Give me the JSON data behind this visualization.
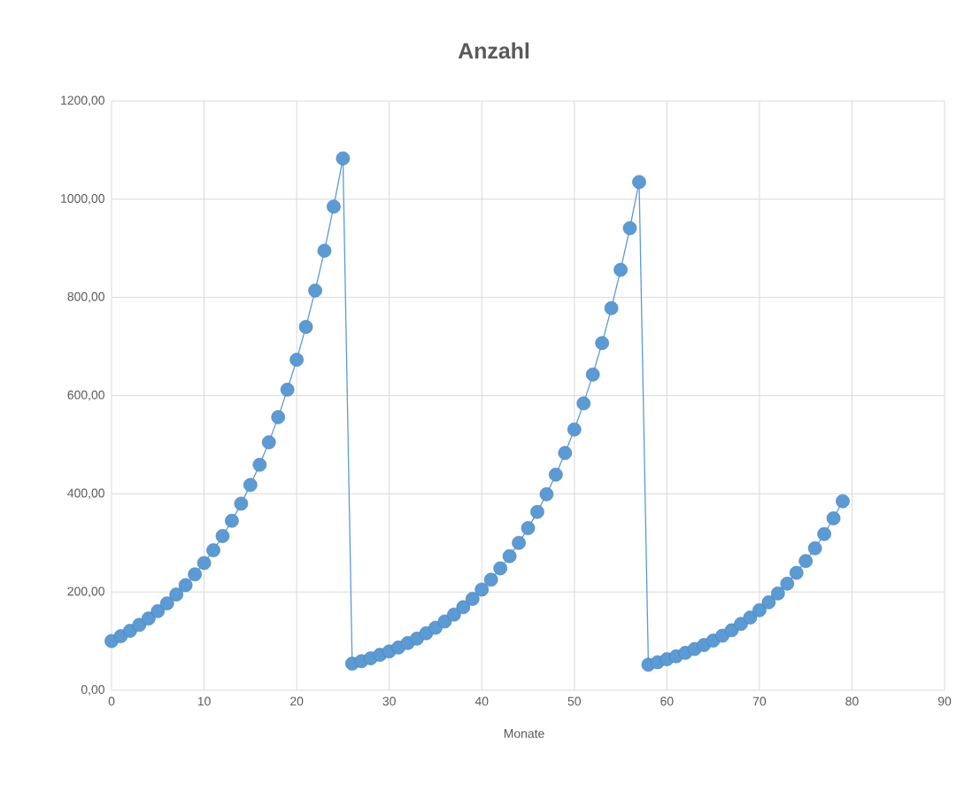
{
  "chart_data": {
    "type": "line",
    "title": "Anzahl",
    "xlabel": "Monate",
    "x": [
      0,
      1,
      2,
      3,
      4,
      5,
      6,
      7,
      8,
      9,
      10,
      11,
      12,
      13,
      14,
      15,
      16,
      17,
      18,
      19,
      20,
      21,
      22,
      23,
      24,
      25,
      26,
      27,
      28,
      29,
      30,
      31,
      32,
      33,
      34,
      35,
      36,
      37,
      38,
      39,
      40,
      41,
      42,
      43,
      44,
      45,
      46,
      47,
      48,
      49,
      50,
      51,
      52,
      53,
      54,
      55,
      56,
      57,
      58,
      59,
      60,
      61,
      62,
      63,
      64,
      65,
      66,
      67,
      68,
      69,
      70,
      71,
      72,
      73,
      74,
      75,
      76,
      77,
      78,
      79
    ],
    "series": [
      {
        "color": "#5b9bd5",
        "values": [
          100,
          110,
          121,
          133,
          146,
          161,
          177,
          195,
          214,
          236,
          259,
          285,
          314,
          345,
          380,
          418,
          459,
          505,
          556,
          612,
          673,
          740,
          814,
          895,
          985,
          1083,
          54,
          59,
          65,
          72,
          79,
          87,
          96,
          105,
          116,
          127,
          140,
          154,
          169,
          186,
          205,
          225,
          248,
          273,
          300,
          330,
          363,
          399,
          439,
          483,
          531,
          584,
          643,
          707,
          778,
          856,
          941,
          1035,
          52,
          57,
          63,
          69,
          76,
          84,
          92,
          101,
          111,
          122,
          135,
          148,
          163,
          179,
          197,
          217,
          239,
          263,
          289,
          318,
          350,
          385
        ]
      }
    ],
    "xlim": [
      0,
      90
    ],
    "xticks": [
      0,
      10,
      20,
      30,
      40,
      50,
      60,
      70,
      80,
      90
    ],
    "ylim": [
      0,
      1200
    ],
    "yticks": [
      {
        "value": 0,
        "label": "0,00"
      },
      {
        "value": 200,
        "label": "200,00"
      },
      {
        "value": 400,
        "label": "400,00"
      },
      {
        "value": 600,
        "label": "600,00"
      },
      {
        "value": 800,
        "label": "800,00"
      },
      {
        "value": 1000,
        "label": "1000,00"
      },
      {
        "value": 1200,
        "label": "1200,00"
      }
    ],
    "grid": true,
    "marker": "circle",
    "line_style": "solid"
  }
}
